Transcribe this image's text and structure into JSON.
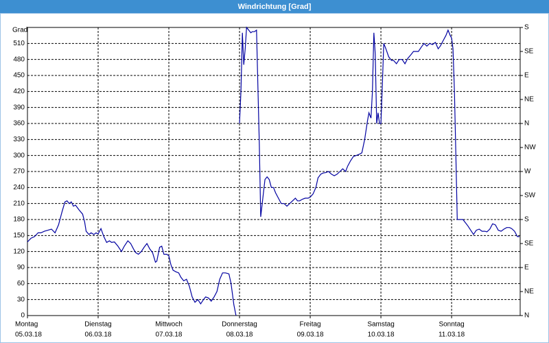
{
  "chart_data": {
    "type": "line",
    "title": "Windrichtung [Grad]",
    "y_label": "Grad",
    "color": "#0000a0",
    "grid": true,
    "xlim": [
      0,
      6.97
    ],
    "xticks": [
      {
        "value": 0,
        "label": "Montag",
        "date": "05.03.18"
      },
      {
        "value": 1,
        "label": "Dienstag",
        "date": "06.03.18"
      },
      {
        "value": 2,
        "label": "Mittwoch",
        "date": "07.03.18"
      },
      {
        "value": 3,
        "label": "Donnerstag",
        "date": "08.03.18"
      },
      {
        "value": 4,
        "label": "Freitag",
        "date": "09.03.18"
      },
      {
        "value": 5,
        "label": "Samstag",
        "date": "10.03.18"
      },
      {
        "value": 6,
        "label": "Sonntag",
        "date": "11.03.18"
      }
    ],
    "ylim": [
      0,
      540
    ],
    "yticks": [
      0,
      30,
      60,
      90,
      120,
      150,
      180,
      210,
      240,
      270,
      300,
      330,
      360,
      390,
      420,
      450,
      480,
      510
    ],
    "y2lim": [
      0,
      540
    ],
    "y2ticks": [
      {
        "value": 540,
        "label": "S"
      },
      {
        "value": 495,
        "label": "SE"
      },
      {
        "value": 450,
        "label": "E"
      },
      {
        "value": 405,
        "label": "NE"
      },
      {
        "value": 360,
        "label": "N"
      },
      {
        "value": 315,
        "label": "NW"
      },
      {
        "value": 270,
        "label": "W"
      },
      {
        "value": 225,
        "label": "SW"
      },
      {
        "value": 180,
        "label": "S"
      },
      {
        "value": 135,
        "label": "SE"
      },
      {
        "value": 90,
        "label": "E"
      },
      {
        "value": 45,
        "label": "NE"
      },
      {
        "value": 0,
        "label": "N"
      }
    ],
    "x": [
      0,
      0.05,
      0.1,
      0.15,
      0.19,
      0.24,
      0.29,
      0.34,
      0.39,
      0.44,
      0.49,
      0.53,
      0.56,
      0.59,
      0.62,
      0.65,
      0.68,
      0.73,
      0.78,
      0.81,
      0.83,
      0.87,
      0.9,
      0.94,
      0.97,
      1.0,
      1.04,
      1.08,
      1.12,
      1.16,
      1.19,
      1.23,
      1.28,
      1.33,
      1.37,
      1.42,
      1.46,
      1.5,
      1.53,
      1.57,
      1.61,
      1.65,
      1.69,
      1.73,
      1.77,
      1.81,
      1.83,
      1.87,
      1.9,
      1.93,
      1.97,
      2.0,
      2.03,
      2.06,
      2.1,
      2.14,
      2.17,
      2.21,
      2.25,
      2.29,
      2.33,
      2.37,
      2.41,
      2.45,
      2.49,
      2.52,
      2.56,
      2.6,
      2.64,
      2.68,
      2.72,
      2.76,
      2.8,
      2.83,
      2.85,
      2.88,
      2.92,
      2.95,
      2.97,
      3.0,
      3.02,
      3.04,
      3.06,
      3.08,
      3.1,
      3.13,
      3.16,
      3.18,
      3.21,
      3.24,
      3.26,
      3.28,
      3.3,
      3.33,
      3.36,
      3.39,
      3.42,
      3.45,
      3.48,
      3.51,
      3.55,
      3.59,
      3.63,
      3.67,
      3.71,
      3.75,
      3.79,
      3.82,
      3.85,
      3.89,
      3.93,
      3.97,
      4.0,
      4.04,
      4.08,
      4.11,
      4.15,
      4.18,
      4.22,
      4.26,
      4.3,
      4.34,
      4.38,
      4.42,
      4.46,
      4.5,
      4.53,
      4.57,
      4.61,
      4.65,
      4.69,
      4.73,
      4.77,
      4.81,
      4.83,
      4.86,
      4.88,
      4.9,
      4.92,
      4.94,
      4.96,
      4.98,
      5.0,
      5.02,
      5.04,
      5.07,
      5.11,
      5.15,
      5.18,
      5.22,
      5.26,
      5.3,
      5.34,
      5.38,
      5.42,
      5.46,
      5.5,
      5.53,
      5.57,
      5.61,
      5.65,
      5.69,
      5.73,
      5.77,
      5.81,
      5.84,
      5.88,
      5.92,
      5.95,
      5.98,
      6.0,
      6.02,
      6.04,
      6.06,
      6.08,
      6.12,
      6.16,
      6.19,
      6.23,
      6.27,
      6.31,
      6.35,
      6.39,
      6.43,
      6.47,
      6.5,
      6.54,
      6.58,
      6.62,
      6.66,
      6.7,
      6.74,
      6.78,
      6.82,
      6.85,
      6.89,
      6.93,
      6.96
    ],
    "values": [
      138,
      145,
      148,
      155,
      155,
      158,
      160,
      162,
      155,
      170,
      195,
      213,
      215,
      210,
      213,
      205,
      207,
      198,
      190,
      175,
      158,
      152,
      155,
      152,
      155,
      153,
      163,
      148,
      137,
      140,
      137,
      138,
      130,
      120,
      130,
      140,
      135,
      125,
      118,
      115,
      120,
      128,
      135,
      125,
      118,
      100,
      102,
      128,
      130,
      115,
      115,
      112,
      95,
      85,
      82,
      80,
      72,
      65,
      68,
      55,
      35,
      25,
      30,
      22,
      30,
      35,
      33,
      27,
      35,
      45,
      68,
      80,
      80,
      79,
      78,
      60,
      20,
      0,
      null,
      360,
      420,
      530,
      470,
      500,
      540,
      535,
      530,
      532,
      532,
      535,
      430,
      320,
      185,
      220,
      255,
      260,
      255,
      240,
      240,
      230,
      220,
      210,
      210,
      205,
      210,
      215,
      220,
      215,
      215,
      218,
      220,
      220,
      222,
      228,
      240,
      258,
      265,
      267,
      268,
      270,
      265,
      262,
      265,
      270,
      275,
      270,
      280,
      290,
      298,
      300,
      302,
      305,
      330,
      365,
      380,
      370,
      420,
      530,
      490,
      360,
      380,
      360,
      360,
      430,
      510,
      500,
      485,
      478,
      478,
      472,
      480,
      480,
      472,
      482,
      488,
      495,
      495,
      495,
      503,
      510,
      505,
      510,
      508,
      512,
      500,
      505,
      515,
      525,
      535,
      525,
      520,
      500,
      420,
      300,
      180,
      180,
      180,
      175,
      168,
      160,
      152,
      160,
      162,
      158,
      158,
      157,
      162,
      172,
      170,
      160,
      158,
      162,
      165,
      165,
      163,
      158,
      148,
      148
    ]
  }
}
